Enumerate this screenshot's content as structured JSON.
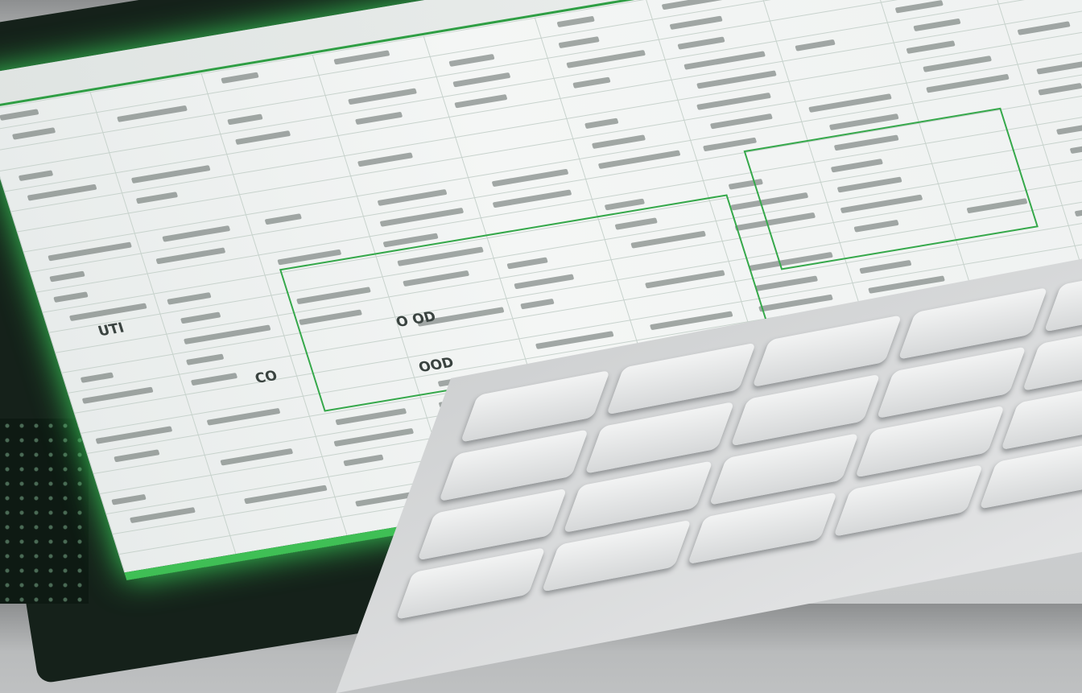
{
  "scene": "laptop-spreadsheet-photo",
  "accent_color": "#3fbf55",
  "visible_text": [
    "O OD",
    "OOD",
    "CO",
    "UTI"
  ]
}
